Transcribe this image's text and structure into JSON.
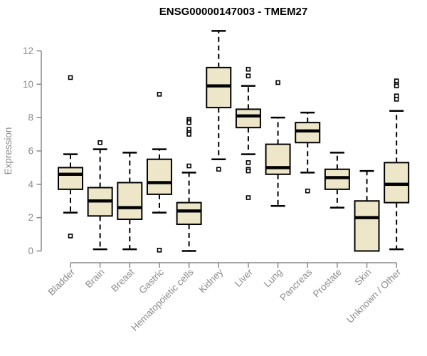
{
  "chart_data": {
    "type": "boxplot",
    "title": "ENSG00000147003 - TMEM27",
    "ylabel": "Expression",
    "xlabel": "",
    "ylim": [
      0,
      12
    ],
    "yticks": [
      0,
      2,
      4,
      6,
      8,
      10,
      12
    ],
    "grid": false,
    "legend": "none",
    "outlier_marker": "open-square",
    "categories": [
      "Bladder",
      "Brain",
      "Breast",
      "Gastric",
      "Hematopoietic cells",
      "Kidney",
      "Liver",
      "Lung",
      "Pancreas",
      "Prostate",
      "Skin",
      "Unknown / Other"
    ],
    "boxes": [
      {
        "category": "Bladder",
        "whisker_low": 2.3,
        "q1": 3.7,
        "median": 4.6,
        "q3": 5.0,
        "whisker_high": 5.8,
        "outliers": [
          10.4,
          0.9
        ]
      },
      {
        "category": "Brain",
        "whisker_low": 0.1,
        "q1": 2.1,
        "median": 3.0,
        "q3": 3.8,
        "whisker_high": 6.1,
        "outliers": [
          6.5
        ]
      },
      {
        "category": "Breast",
        "whisker_low": 0.1,
        "q1": 1.9,
        "median": 2.6,
        "q3": 4.1,
        "whisker_high": 5.9,
        "outliers": []
      },
      {
        "category": "Gastric",
        "whisker_low": 2.3,
        "q1": 3.4,
        "median": 4.1,
        "q3": 5.5,
        "whisker_high": 6.1,
        "outliers": [
          9.4,
          0.05
        ]
      },
      {
        "category": "Hematopoietic cells",
        "whisker_low": 0.0,
        "q1": 1.6,
        "median": 2.4,
        "q3": 2.9,
        "whisker_high": 4.7,
        "outliers": [
          7.9,
          7.8,
          7.7,
          7.3,
          7.1,
          7.0,
          5.1
        ]
      },
      {
        "category": "Kidney",
        "whisker_low": 5.5,
        "q1": 8.6,
        "median": 9.9,
        "q3": 11.0,
        "whisker_high": 13.2,
        "outliers": [
          4.9
        ]
      },
      {
        "category": "Liver",
        "whisker_low": 5.8,
        "q1": 7.4,
        "median": 8.1,
        "q3": 8.5,
        "whisker_high": 9.9,
        "outliers": [
          10.9,
          10.5,
          5.3,
          4.9,
          4.8,
          3.2
        ]
      },
      {
        "category": "Lung",
        "whisker_low": 2.7,
        "q1": 4.6,
        "median": 5.0,
        "q3": 6.4,
        "whisker_high": 8.0,
        "outliers": [
          10.1
        ]
      },
      {
        "category": "Pancreas",
        "whisker_low": 4.7,
        "q1": 6.5,
        "median": 7.2,
        "q3": 7.7,
        "whisker_high": 8.3,
        "outliers": [
          3.6
        ]
      },
      {
        "category": "Prostate",
        "whisker_low": 2.6,
        "q1": 3.7,
        "median": 4.4,
        "q3": 4.9,
        "whisker_high": 5.9,
        "outliers": []
      },
      {
        "category": "Skin",
        "whisker_low": 0.0,
        "q1": 0.0,
        "median": 2.0,
        "q3": 3.0,
        "whisker_high": 4.8,
        "outliers": []
      },
      {
        "category": "Unknown / Other",
        "whisker_low": 0.1,
        "q1": 2.9,
        "median": 4.0,
        "q3": 5.3,
        "whisker_high": 8.4,
        "outliers": [
          10.2,
          10.0,
          9.9,
          9.3,
          9.1
        ]
      }
    ],
    "colors": {
      "box_fill": "#EDE6C8",
      "box_border": "#000000",
      "median": "#000000",
      "whisker": "#000000",
      "outlier_stroke": "#000000",
      "outlier_fill": "#ffffff",
      "axis": "#888888",
      "tick_label": "#8c8c8c",
      "title": "#000000",
      "background": "#ffffff"
    }
  }
}
